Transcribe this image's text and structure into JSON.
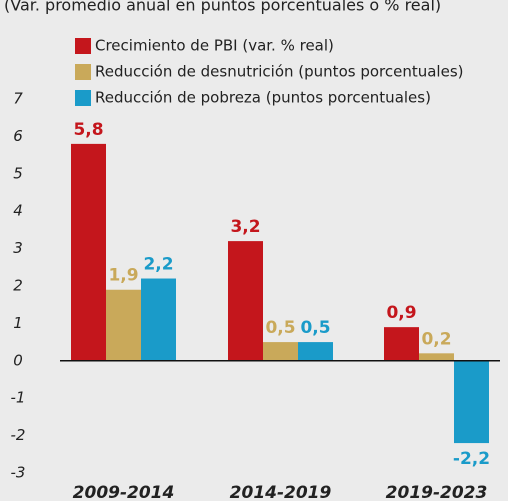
{
  "chart_data": {
    "type": "bar",
    "subtitle": "(Var. promedio anual en puntos porcentuales o % real)",
    "categories": [
      "2009-2014",
      "2014-2019",
      "2019-2023"
    ],
    "series": [
      {
        "name": "Crecimiento de PBI (var. % real)",
        "color": "#c4161c",
        "values": [
          5.8,
          3.2,
          0.9
        ],
        "value_labels": [
          "5,8",
          "3,2",
          "0,9"
        ]
      },
      {
        "name": "Reducción de desnutrición (puntos porcentuales)",
        "color": "#c9a95a",
        "values": [
          1.9,
          0.5,
          0.2
        ],
        "value_labels": [
          "1,9",
          "0,5",
          "0,2"
        ]
      },
      {
        "name": "Reducción de pobreza (puntos porcentuales)",
        "color": "#1a9bc9",
        "values": [
          2.2,
          0.5,
          -2.2
        ],
        "value_labels": [
          "2,2",
          "0,5",
          "-2,2"
        ]
      }
    ],
    "ylim": [
      -3,
      7
    ],
    "yticks": [
      -3,
      -2,
      -1,
      0,
      1,
      2,
      3,
      4,
      5,
      6,
      7
    ]
  }
}
